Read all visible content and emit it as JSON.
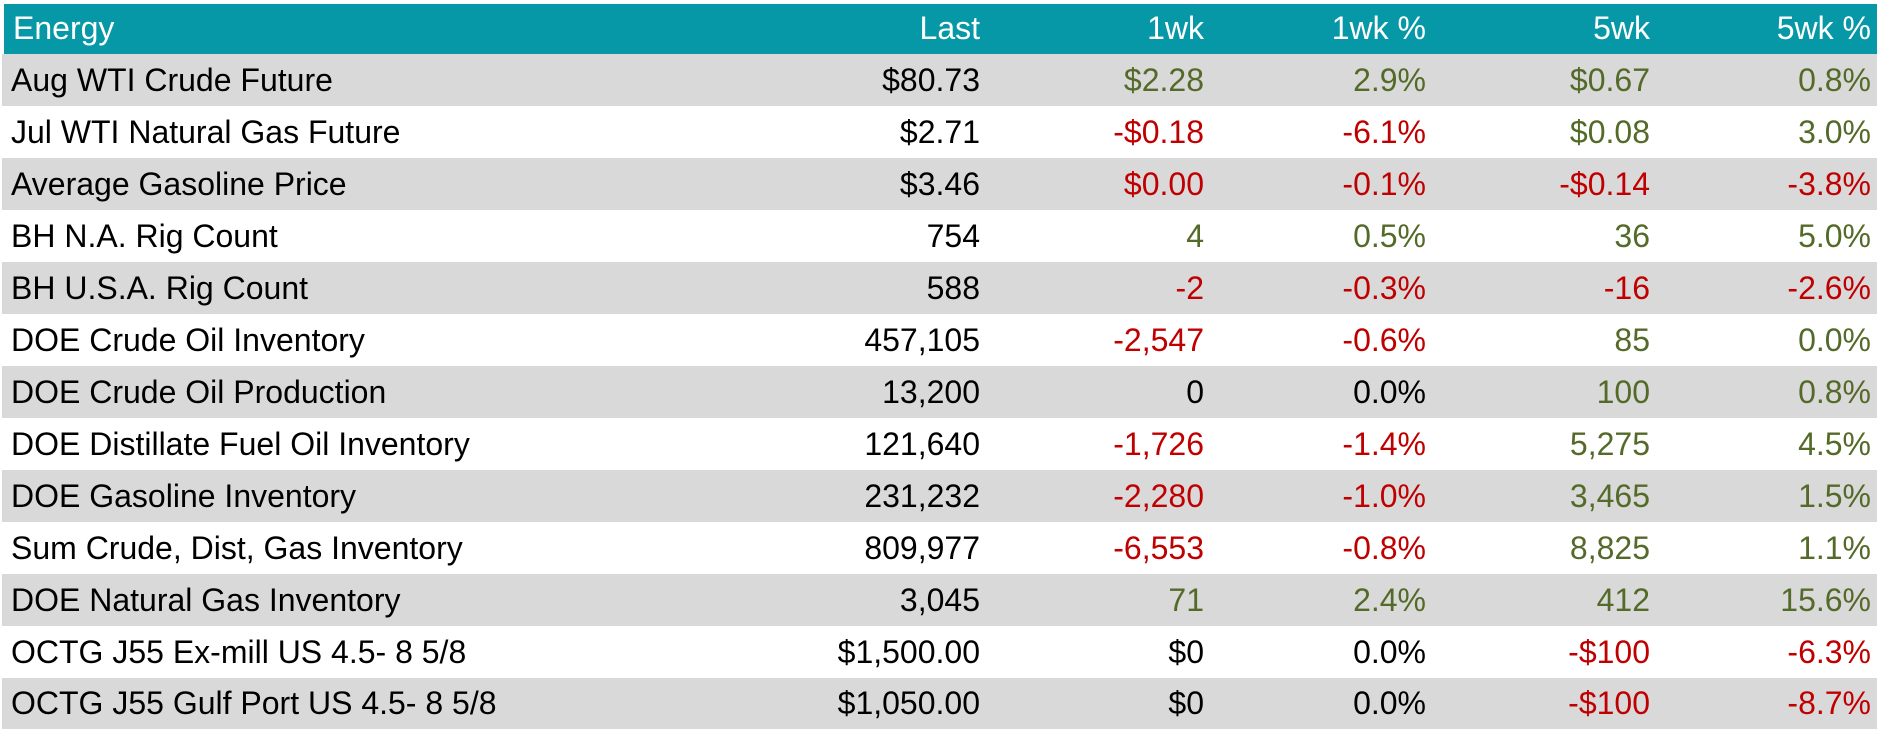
{
  "table": {
    "columns": [
      {
        "label": "Energy"
      },
      {
        "label": "Last"
      },
      {
        "label": "1wk"
      },
      {
        "label": "1wk %"
      },
      {
        "label": "5wk"
      },
      {
        "label": "5wk %"
      }
    ],
    "rows": [
      {
        "label": "Aug WTI Crude Future",
        "cells": [
          {
            "v": "$80.73",
            "t": "neu"
          },
          {
            "v": "$2.28",
            "t": "pos"
          },
          {
            "v": "2.9%",
            "t": "pos"
          },
          {
            "v": "$0.67",
            "t": "pos"
          },
          {
            "v": "0.8%",
            "t": "pos"
          }
        ]
      },
      {
        "label": "Jul WTI Natural Gas Future",
        "cells": [
          {
            "v": "$2.71",
            "t": "neu"
          },
          {
            "v": "-$0.18",
            "t": "neg"
          },
          {
            "v": "-6.1%",
            "t": "neg"
          },
          {
            "v": "$0.08",
            "t": "pos"
          },
          {
            "v": "3.0%",
            "t": "pos"
          }
        ]
      },
      {
        "label": "Average Gasoline Price",
        "cells": [
          {
            "v": "$3.46",
            "t": "neu"
          },
          {
            "v": "$0.00",
            "t": "neg"
          },
          {
            "v": "-0.1%",
            "t": "neg"
          },
          {
            "v": "-$0.14",
            "t": "neg"
          },
          {
            "v": "-3.8%",
            "t": "neg"
          }
        ]
      },
      {
        "label": "BH N.A. Rig Count",
        "cells": [
          {
            "v": "754",
            "t": "neu"
          },
          {
            "v": "4",
            "t": "pos"
          },
          {
            "v": "0.5%",
            "t": "pos"
          },
          {
            "v": "36",
            "t": "pos"
          },
          {
            "v": "5.0%",
            "t": "pos"
          }
        ]
      },
      {
        "label": "BH U.S.A. Rig Count",
        "cells": [
          {
            "v": "588",
            "t": "neu"
          },
          {
            "v": "-2",
            "t": "neg"
          },
          {
            "v": "-0.3%",
            "t": "neg"
          },
          {
            "v": "-16",
            "t": "neg"
          },
          {
            "v": "-2.6%",
            "t": "neg"
          }
        ]
      },
      {
        "label": "DOE Crude Oil Inventory",
        "cells": [
          {
            "v": "457,105",
            "t": "neu"
          },
          {
            "v": "-2,547",
            "t": "neg"
          },
          {
            "v": "-0.6%",
            "t": "neg"
          },
          {
            "v": "85",
            "t": "pos"
          },
          {
            "v": "0.0%",
            "t": "pos"
          }
        ]
      },
      {
        "label": "DOE Crude Oil Production",
        "cells": [
          {
            "v": "13,200",
            "t": "neu"
          },
          {
            "v": "0",
            "t": "neu"
          },
          {
            "v": "0.0%",
            "t": "neu"
          },
          {
            "v": "100",
            "t": "pos"
          },
          {
            "v": "0.8%",
            "t": "pos"
          }
        ]
      },
      {
        "label": "DOE Distillate Fuel Oil Inventory",
        "cells": [
          {
            "v": "121,640",
            "t": "neu"
          },
          {
            "v": "-1,726",
            "t": "neg"
          },
          {
            "v": "-1.4%",
            "t": "neg"
          },
          {
            "v": "5,275",
            "t": "pos"
          },
          {
            "v": "4.5%",
            "t": "pos"
          }
        ]
      },
      {
        "label": "DOE Gasoline Inventory",
        "cells": [
          {
            "v": "231,232",
            "t": "neu"
          },
          {
            "v": "-2,280",
            "t": "neg"
          },
          {
            "v": "-1.0%",
            "t": "neg"
          },
          {
            "v": "3,465",
            "t": "pos"
          },
          {
            "v": "1.5%",
            "t": "pos"
          }
        ]
      },
      {
        "label": "Sum Crude, Dist, Gas Inventory",
        "cells": [
          {
            "v": "809,977",
            "t": "neu"
          },
          {
            "v": "-6,553",
            "t": "neg"
          },
          {
            "v": "-0.8%",
            "t": "neg"
          },
          {
            "v": "8,825",
            "t": "pos"
          },
          {
            "v": "1.1%",
            "t": "pos"
          }
        ]
      },
      {
        "label": "DOE Natural Gas Inventory",
        "cells": [
          {
            "v": "3,045",
            "t": "neu"
          },
          {
            "v": "71",
            "t": "pos"
          },
          {
            "v": "2.4%",
            "t": "pos"
          },
          {
            "v": "412",
            "t": "pos"
          },
          {
            "v": "15.6%",
            "t": "pos"
          }
        ]
      },
      {
        "label": "OCTG J55 Ex-mill US 4.5- 8 5/8",
        "cells": [
          {
            "v": "$1,500.00",
            "t": "neu"
          },
          {
            "v": "$0",
            "t": "neu"
          },
          {
            "v": "0.0%",
            "t": "neu"
          },
          {
            "v": "-$100",
            "t": "neg"
          },
          {
            "v": "-6.3%",
            "t": "neg"
          }
        ]
      },
      {
        "label": "OCTG J55 Gulf Port US 4.5- 8 5/8",
        "cells": [
          {
            "v": "$1,050.00",
            "t": "neu"
          },
          {
            "v": "$0",
            "t": "neu"
          },
          {
            "v": "0.0%",
            "t": "neu"
          },
          {
            "v": "-$100",
            "t": "neg"
          },
          {
            "v": "-8.7%",
            "t": "neg"
          }
        ]
      }
    ]
  },
  "colors": {
    "header_bg": "#0798A8",
    "header_text": "#FFFFFF",
    "stripe": "#D9D9D9",
    "row_white": "#FFFFFF",
    "positive": "#546A29",
    "negative": "#C00000",
    "neutral": "#000000"
  },
  "chart_data": {
    "type": "table",
    "title": "Energy",
    "columns": [
      "Energy",
      "Last",
      "1wk",
      "1wk %",
      "5wk",
      "5wk %"
    ],
    "rows": [
      [
        "Aug WTI Crude Future",
        "$80.73",
        "$2.28",
        "2.9%",
        "$0.67",
        "0.8%"
      ],
      [
        "Jul WTI Natural Gas Future",
        "$2.71",
        "-$0.18",
        "-6.1%",
        "$0.08",
        "3.0%"
      ],
      [
        "Average Gasoline Price",
        "$3.46",
        "$0.00",
        "-0.1%",
        "-$0.14",
        "-3.8%"
      ],
      [
        "BH N.A. Rig Count",
        "754",
        "4",
        "0.5%",
        "36",
        "5.0%"
      ],
      [
        "BH U.S.A. Rig Count",
        "588",
        "-2",
        "-0.3%",
        "-16",
        "-2.6%"
      ],
      [
        "DOE Crude Oil Inventory",
        "457,105",
        "-2,547",
        "-0.6%",
        "85",
        "0.0%"
      ],
      [
        "DOE Crude Oil Production",
        "13,200",
        "0",
        "0.0%",
        "100",
        "0.8%"
      ],
      [
        "DOE Distillate Fuel Oil Inventory",
        "121,640",
        "-1,726",
        "-1.4%",
        "5,275",
        "4.5%"
      ],
      [
        "DOE Gasoline Inventory",
        "231,232",
        "-2,280",
        "-1.0%",
        "3,465",
        "1.5%"
      ],
      [
        "Sum Crude, Dist, Gas Inventory",
        "809,977",
        "-6,553",
        "-0.8%",
        "8,825",
        "1.1%"
      ],
      [
        "DOE Natural Gas Inventory",
        "3,045",
        "71",
        "2.4%",
        "412",
        "15.6%"
      ],
      [
        "OCTG J55 Ex-mill US 4.5- 8 5/8",
        "$1,500.00",
        "$0",
        "0.0%",
        "-$100",
        "-6.3%"
      ],
      [
        "OCTG J55 Gulf Port US 4.5- 8 5/8",
        "$1,050.00",
        "$0",
        "0.0%",
        "-$100",
        "-8.7%"
      ]
    ],
    "value_color_rule": "positive changes dark-olive-green, negative changes dark-red, zero/neutral black",
    "layout": {
      "header_bg": "#0798A8",
      "zebra_striping": "odd rows gray #D9D9D9",
      "numeric_alignment": "right"
    }
  }
}
